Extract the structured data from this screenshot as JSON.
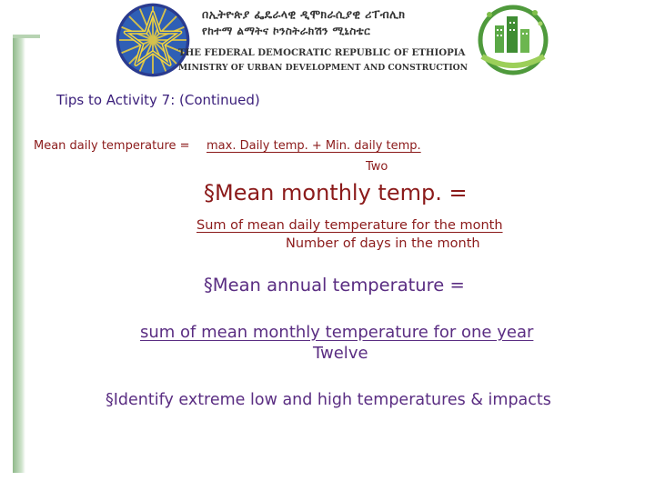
{
  "header": {
    "amharic_line1": "በኢትዮጵያ ፌዴራላዊ ዲሞክራሲያዊ ሪፐብሊክ",
    "amharic_line2": "የከተማ ልማትና ኮንስትራክሽን ሚኒስቴር",
    "english_line1": "THE FEDERAL DEMOCRATIC REPUBLIC OF ETHIOPIA",
    "english_line2": "MINISTRY OF URBAN DEVELOPMENT AND CONSTRUCTION"
  },
  "slide": {
    "title": "Tips to Activity 7: (Continued)",
    "daily": {
      "label": "Mean daily temperature = ",
      "numerator": "max. Daily temp. + Min. daily temp.",
      "denominator": "Two"
    },
    "monthly": {
      "bullet": "§",
      "label": "Mean monthly temp. =",
      "numerator": "Sum of mean daily temperature for the month",
      "denominator": "Number of days in the month"
    },
    "annual": {
      "bullet": "§",
      "label": "Mean annual temperature =",
      "numerator": "sum of mean monthly temperature for one year",
      "denominator": "Twelve"
    },
    "extreme": {
      "bullet": "§",
      "text": "Identify extreme low and high temperatures & impacts"
    }
  },
  "colors": {
    "title": "#3a1e7a",
    "numerator_red": "#8b1a1a",
    "annual_purple": "#5a2d82",
    "accent_green": "#8fb98a"
  }
}
